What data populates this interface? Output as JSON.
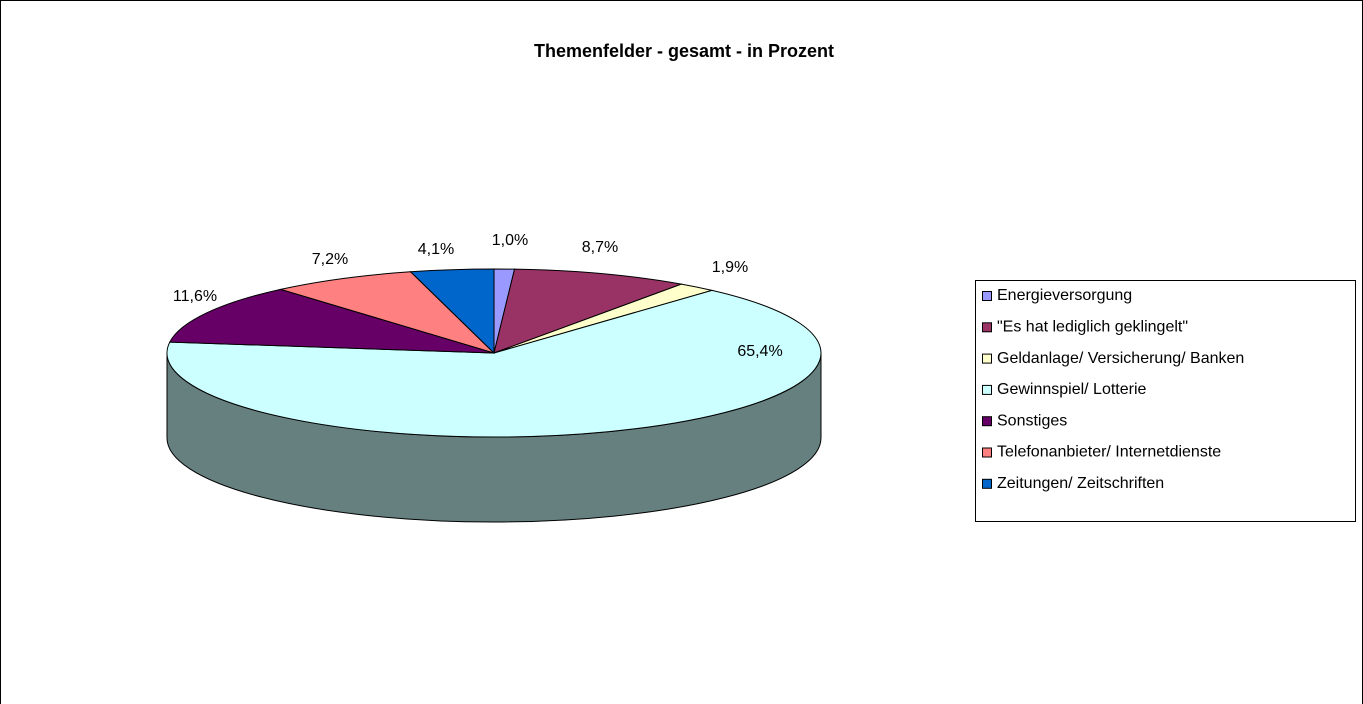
{
  "chart_data": {
    "type": "pie3d",
    "title": "Themenfelder - gesamt - in Prozent",
    "categories": [
      "Energieversorgung",
      "\"Es hat lediglich geklingelt\"",
      "Geldanlage/ Versicherung/ Banken",
      "Gewinnspiel/ Lotterie",
      "Sonstiges",
      "Telefonanbieter/ Internetdienste",
      "Zeitungen/ Zeitschriften"
    ],
    "values": [
      1.0,
      8.7,
      1.9,
      65.4,
      11.6,
      7.2,
      4.1
    ],
    "value_labels": [
      "1,0%",
      "8,7%",
      "1,9%",
      "65,4%",
      "11,6%",
      "7,2%",
      "4,1%"
    ],
    "colors": [
      "#9999FF",
      "#993366",
      "#FFFFCC",
      "#CCFFFF",
      "#660066",
      "#FF8080",
      "#0066CC"
    ],
    "legend": "right"
  }
}
